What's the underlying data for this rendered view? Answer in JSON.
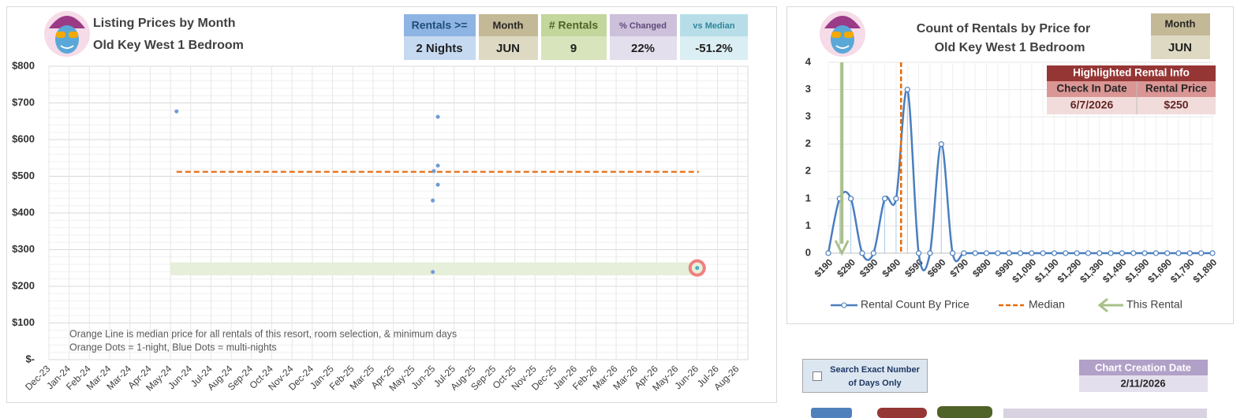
{
  "chart_data": [
    {
      "type": "scatter",
      "title": "Listing Prices by Month",
      "subtitle": "Old Key West 1 Bedroom",
      "x": [
        6.3,
        19.2,
        19.2,
        19.0,
        19.2,
        18.95,
        18.95
      ],
      "values": [
        677,
        662,
        529,
        514,
        477,
        434,
        239
      ],
      "color": "#6f9bd4",
      "highlight": {
        "x": 32.0,
        "value": 250,
        "color": "#f08080"
      },
      "median": 512,
      "median_color": "#e87722",
      "band": [
        230,
        265
      ],
      "band_color": "#e5efd9",
      "xlim": [
        0,
        34.5
      ],
      "xticks": [
        {
          "value": 0,
          "label": "Dec-23"
        },
        {
          "value": 1,
          "label": "Jan-24"
        },
        {
          "value": 2,
          "label": "Feb-24"
        },
        {
          "value": 3,
          "label": "Mar-24"
        },
        {
          "value": 4,
          "label": "Mar-24"
        },
        {
          "value": 5,
          "label": "Apr-24"
        },
        {
          "value": 6,
          "label": "May-24"
        },
        {
          "value": 7,
          "label": "Jun-24"
        },
        {
          "value": 8,
          "label": "Jul-24"
        },
        {
          "value": 9,
          "label": "Aug-24"
        },
        {
          "value": 10,
          "label": "Sep-24"
        },
        {
          "value": 11,
          "label": "Oct-24"
        },
        {
          "value": 12,
          "label": "Nov-24"
        },
        {
          "value": 13,
          "label": "Dec-24"
        },
        {
          "value": 14,
          "label": "Jan-25"
        },
        {
          "value": 15,
          "label": "Feb-25"
        },
        {
          "value": 16,
          "label": "Mar-25"
        },
        {
          "value": 17,
          "label": "Apr-25"
        },
        {
          "value": 18,
          "label": "May-25"
        },
        {
          "value": 19,
          "label": "Jun-25"
        },
        {
          "value": 20,
          "label": "Jul-25"
        },
        {
          "value": 21,
          "label": "Aug-25"
        },
        {
          "value": 22,
          "label": "Sep-25"
        },
        {
          "value": 23,
          "label": "Oct-25"
        },
        {
          "value": 24,
          "label": "Nov-25"
        },
        {
          "value": 25,
          "label": "Dec-25"
        },
        {
          "value": 26,
          "label": "Jan-26"
        },
        {
          "value": 27,
          "label": "Feb-26"
        },
        {
          "value": 28,
          "label": "Mar-26"
        },
        {
          "value": 29,
          "label": "Mar-26"
        },
        {
          "value": 30,
          "label": "Apr-26"
        },
        {
          "value": 31,
          "label": "May-26"
        },
        {
          "value": 32,
          "label": "Jun-26"
        },
        {
          "value": 33,
          "label": "Jul-26"
        },
        {
          "value": 34,
          "label": "Aug-26"
        }
      ],
      "ylim": [
        0,
        800
      ],
      "yticks": [
        {
          "value": 0,
          "label": "$-"
        },
        {
          "value": 100,
          "label": "$100"
        },
        {
          "value": 200,
          "label": "$200"
        },
        {
          "value": 300,
          "label": "$300"
        },
        {
          "value": 400,
          "label": "$400"
        },
        {
          "value": 500,
          "label": "$500"
        },
        {
          "value": 600,
          "label": "$600"
        },
        {
          "value": 700,
          "label": "$700"
        },
        {
          "value": 800,
          "label": "$800"
        }
      ],
      "grid": true,
      "annotations": [
        "Orange Line is median price for all rentals of this resort, room selection, & minimum days",
        "Orange Dots = 1-night, Blue Dots = multi-nights"
      ]
    },
    {
      "type": "line",
      "title": "Count of Rentals by Price for",
      "subtitle": "Old Key West 1 Bedroom",
      "categories": [
        "$190",
        null,
        "$290",
        null,
        "$390",
        null,
        "$490",
        null,
        "$590",
        null,
        "$690",
        null,
        "$790",
        null,
        "$890",
        null,
        "$990",
        null,
        "$1,090",
        null,
        "$1,190",
        null,
        "$1,290",
        null,
        "$1,390",
        null,
        "$1,490",
        null,
        "$1,590",
        null,
        "$1,690",
        null,
        "$1,790",
        null,
        "$1,890"
      ],
      "series": [
        {
          "name": "Rental Count By Price",
          "color": "#4a7ebf",
          "values": [
            0,
            1,
            1,
            0,
            0,
            1,
            1,
            3,
            0,
            0,
            2,
            0,
            0,
            0,
            0,
            0,
            0,
            0,
            0,
            0,
            0,
            0,
            0,
            0,
            0,
            0,
            0,
            0,
            0,
            0,
            0,
            0,
            0,
            0,
            0
          ]
        }
      ],
      "median": {
        "name": "Median",
        "value": 512,
        "color": "#e46c0a"
      },
      "this_rental": {
        "name": "This Rental",
        "value": 250,
        "color": "#a9c08a"
      },
      "ylim": [
        0,
        3.5
      ],
      "yticks": [
        0,
        {
          "value": 0.5,
          "label": "1"
        },
        1,
        {
          "value": 1.5,
          "label": "2"
        },
        2,
        {
          "value": 2.5,
          "label": "3"
        },
        3,
        {
          "value": 3.5,
          "label": "4"
        }
      ],
      "grid": true,
      "legend": "bottom"
    }
  ],
  "summary": {
    "headers": [
      "Rentals >=",
      "Month",
      "# Rentals",
      "% Changed",
      "vs Median"
    ],
    "values": [
      "2 Nights",
      "JUN",
      "9",
      "22%",
      "-51.2%"
    ]
  },
  "right_month": {
    "header": "Month",
    "value": "JUN"
  },
  "highlighted": {
    "title": "Highlighted Rental Info",
    "headers": [
      "Check In Date",
      "Rental Price"
    ],
    "values": [
      "6/7/2026",
      "$250"
    ]
  },
  "checkbox_label": [
    "Search Exact Number",
    "of Days Only"
  ],
  "creation": {
    "header": "Chart Creation Date",
    "value": "2/11/2026"
  }
}
